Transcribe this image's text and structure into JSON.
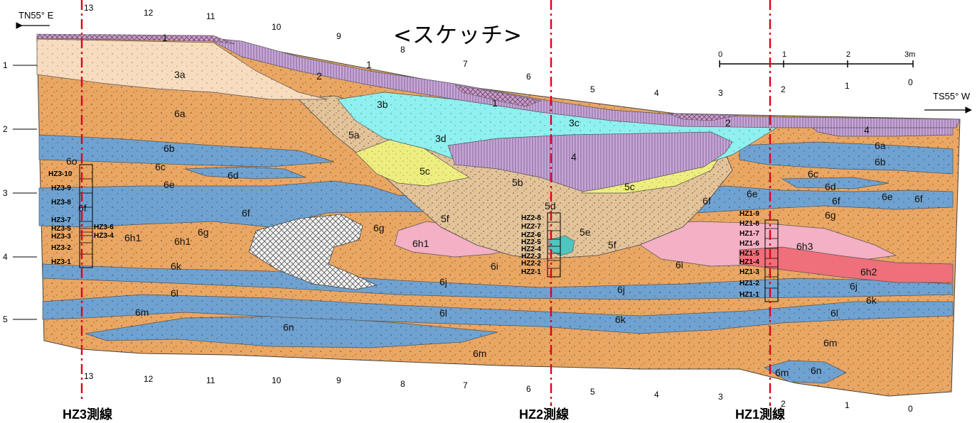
{
  "title": "<スケッチ>",
  "direction_left": "TN55° E",
  "direction_right": "TS55° W",
  "scale_bar": {
    "labels": [
      "0",
      "1",
      "2",
      "3m"
    ]
  },
  "depth_labels": [
    "1",
    "2",
    "3",
    "4",
    "5"
  ],
  "column_numbers": [
    "13",
    "12",
    "11",
    "10",
    "9",
    "8",
    "7",
    "6",
    "5",
    "4",
    "3",
    "2",
    "1",
    "0"
  ],
  "top_column_numbers": [
    "13",
    "12",
    "11",
    "10",
    "9",
    "8",
    "7",
    "6",
    "5",
    "4",
    "3",
    "2",
    "1",
    "0"
  ],
  "survey_lines": [
    "HZ3測線",
    "HZ2測線",
    "HZ1測線"
  ],
  "layers": [
    {
      "id": "1",
      "color": "#c9a0c8"
    },
    {
      "id": "2",
      "color": "#b89ac8"
    },
    {
      "id": "3a",
      "color": "#f7dcc0"
    },
    {
      "id": "3b",
      "color": "#8ff0f0"
    },
    {
      "id": "3c",
      "color": "#8ff0f0"
    },
    {
      "id": "3d",
      "color": "#8ff0f0"
    },
    {
      "id": "4",
      "color": "#c7a6d6"
    },
    {
      "id": "5a",
      "color": "#e3c39a"
    },
    {
      "id": "5b",
      "color": "#e3c39a"
    },
    {
      "id": "5c",
      "color": "#eeee80"
    },
    {
      "id": "5d",
      "color": "#e3c39a"
    },
    {
      "id": "5e",
      "color": "#e3c39a"
    },
    {
      "id": "5f",
      "color": "#e3c39a"
    },
    {
      "id": "6a",
      "color": "#eaa663"
    },
    {
      "id": "6b",
      "color": "#6fa2d0"
    },
    {
      "id": "6c",
      "color": "#eaa663"
    },
    {
      "id": "6d",
      "color": "#6fa2d0"
    },
    {
      "id": "6e",
      "color": "#eaa663"
    },
    {
      "id": "6f",
      "color": "#6fa2d0"
    },
    {
      "id": "6g",
      "color": "#eaa663"
    },
    {
      "id": "6h1",
      "color": "#f4b0c4"
    },
    {
      "id": "6h2",
      "color": "#ef6f7a"
    },
    {
      "id": "6h3",
      "color": "#f4b0c4"
    },
    {
      "id": "6i",
      "color": "#eaa663"
    },
    {
      "id": "6j",
      "color": "#6fa2d0"
    },
    {
      "id": "6k",
      "color": "#eaa663"
    },
    {
      "id": "6l",
      "color": "#6fa2d0"
    },
    {
      "id": "6m",
      "color": "#eaa663"
    },
    {
      "id": "6n",
      "color": "#6fa2d0"
    }
  ],
  "layer_labels": [
    "1",
    "2",
    "1",
    "1",
    "1",
    "2",
    "3a",
    "3b",
    "3c",
    "3d",
    "4",
    "4",
    "5a",
    "5b",
    "5c",
    "5c",
    "5d",
    "5e",
    "5f",
    "5f",
    "6a",
    "6a",
    "6b",
    "6b",
    "6c",
    "6c",
    "6d",
    "6d",
    "6e",
    "6e",
    "6e",
    "6f",
    "6f",
    "6f",
    "6f",
    "6f",
    "6g",
    "6g",
    "6g",
    "6h1",
    "6h1",
    "6h1",
    "6h3",
    "6h2",
    "6i",
    "6i",
    "6j",
    "6j",
    "6j",
    "6k",
    "6k",
    "6k",
    "6l",
    "6l",
    "6l",
    "6m",
    "6m",
    "6m",
    "6n",
    "6n",
    "6m",
    "6o",
    "6o"
  ],
  "samples": {
    "hz3": [
      "HZ3-10",
      "HZ3-9",
      "HZ3-8",
      "HZ3-7",
      "HZ3-6",
      "HZ3-5",
      "HZ3-4",
      "HZ3-3",
      "HZ3-2",
      "HZ3-1"
    ],
    "hz2": [
      "HZ2-8",
      "HZ2-7",
      "HZ2-6",
      "HZ2-5",
      "HZ2-4",
      "HZ2-3",
      "HZ2-2",
      "HZ2-1"
    ],
    "hz1": [
      "HZ1-9",
      "HZ1-8",
      "HZ1-7",
      "HZ1-6",
      "HZ1-5",
      "HZ1-4",
      "HZ1-3",
      "HZ1-2",
      "HZ1-1"
    ]
  }
}
